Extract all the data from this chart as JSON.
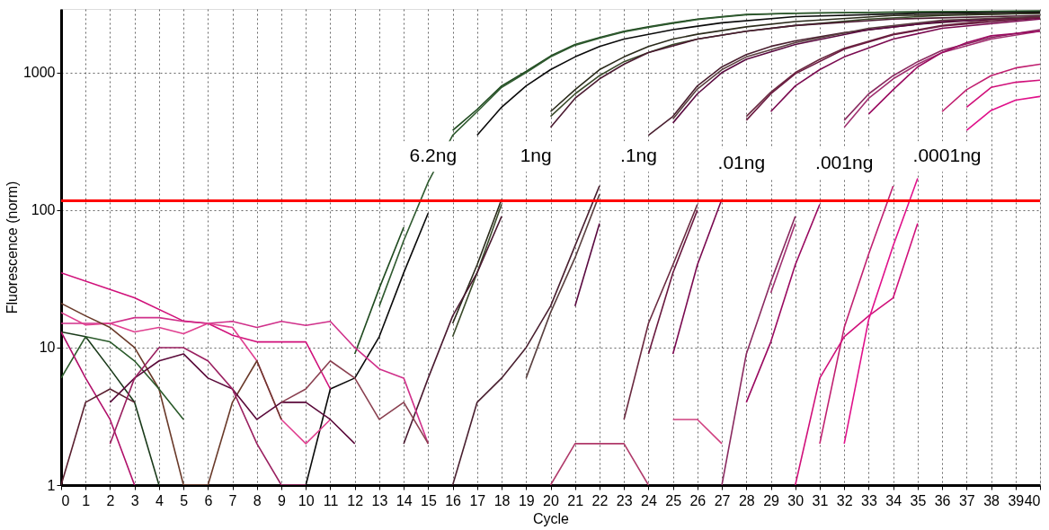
{
  "chart_data": {
    "type": "line",
    "xlabel": "Cycle",
    "ylabel": "Fluorescence (norm)",
    "xlim": [
      0,
      40
    ],
    "xticks": [
      0,
      1,
      2,
      3,
      4,
      5,
      6,
      7,
      8,
      9,
      10,
      11,
      12,
      13,
      14,
      15,
      16,
      17,
      18,
      19,
      20,
      21,
      22,
      23,
      24,
      25,
      26,
      27,
      28,
      29,
      30,
      31,
      32,
      33,
      34,
      35,
      36,
      37,
      38,
      39,
      40
    ],
    "ylim": [
      1,
      2900
    ],
    "yticks": [
      1,
      10,
      100,
      {
        "value": 1000,
        "label": "1000"
      }
    ],
    "log": "y",
    "grid": true,
    "legend": false,
    "marker": "none",
    "line_style": "solid",
    "ref_lines": [
      {
        "axis": "y",
        "value": 117,
        "color": "#ff0000"
      }
    ],
    "annotations": [
      "6.2ng",
      "1ng",
      ".1ng",
      ".01ng",
      ".001ng",
      ".0001ng"
    ],
    "series": [
      {
        "color": "#1f4a1f",
        "x": [
          12,
          13,
          14,
          15,
          16,
          17,
          18,
          19,
          20,
          21,
          22,
          23,
          24,
          25,
          26,
          27,
          28,
          30,
          34,
          40
        ],
        "values": [
          9,
          27,
          75,
          null,
          380,
          540,
          800,
          1020,
          1320,
          1600,
          1800,
          2000,
          2150,
          2300,
          2450,
          2550,
          2650,
          2700,
          2750,
          2800
        ]
      },
      {
        "color": "#2f5a2f",
        "x": [
          13,
          14,
          15,
          16,
          17,
          18,
          19,
          20,
          21,
          22,
          23,
          24,
          25,
          26,
          27,
          28,
          30,
          34,
          40
        ],
        "values": [
          20,
          60,
          160,
          350,
          520,
          780,
          1000,
          1300,
          1580,
          1780,
          1980,
          2130,
          2280,
          2430,
          2530,
          2630,
          2700,
          2750,
          2800
        ]
      },
      {
        "color": "#0a0a0a",
        "x": [
          10,
          11,
          12,
          13,
          14,
          15,
          16,
          17,
          18,
          19,
          20,
          21,
          22,
          23,
          25,
          27,
          30,
          35,
          40
        ],
        "values": [
          1,
          5,
          6,
          12,
          35,
          95,
          null,
          350,
          560,
          800,
          1050,
          1300,
          1550,
          1750,
          2050,
          2300,
          2550,
          2700,
          2750
        ]
      },
      {
        "color": "#3a4a2a",
        "x": [
          16,
          17,
          18,
          19,
          20,
          21,
          22,
          23,
          24,
          25,
          26,
          28,
          30,
          33,
          36,
          40
        ],
        "values": [
          12,
          35,
          110,
          null,
          480,
          700,
          950,
          1200,
          1400,
          1600,
          1750,
          2000,
          2200,
          2450,
          2600,
          2700
        ]
      },
      {
        "color": "#2a2a1a",
        "x": [
          16,
          17,
          18,
          19,
          20,
          21,
          22,
          23,
          24,
          25,
          26,
          28,
          30,
          34,
          40
        ],
        "values": [
          15,
          40,
          120,
          null,
          520,
          750,
          1050,
          1300,
          1550,
          1750,
          1900,
          2150,
          2350,
          2600,
          2700
        ]
      },
      {
        "color": "#4a1a30",
        "x": [
          14,
          15,
          16,
          17,
          18,
          19,
          20,
          21,
          22,
          23,
          24,
          26,
          28,
          30,
          34,
          40
        ],
        "values": [
          2,
          6,
          17,
          35,
          90,
          null,
          400,
          650,
          900,
          1150,
          1400,
          1750,
          2000,
          2200,
          2450,
          2600
        ]
      },
      {
        "color": "#4a2030",
        "x": [
          16,
          17,
          18,
          19,
          20,
          21,
          22,
          23,
          24,
          25,
          26,
          27,
          28,
          29,
          30,
          32,
          35,
          38,
          40
        ],
        "values": [
          1,
          4,
          6,
          10,
          20,
          55,
          150,
          null,
          350,
          480,
          800,
          1100,
          1350,
          1550,
          1700,
          1950,
          2250,
          2450,
          2550
        ]
      },
      {
        "color": "#5a4040",
        "x": [
          19,
          20,
          21,
          22,
          23,
          24,
          25,
          26,
          27,
          28,
          30,
          33,
          36,
          40
        ],
        "values": [
          6,
          18,
          45,
          130,
          null,
          null,
          460,
          760,
          1050,
          1300,
          1650,
          2100,
          2400,
          2550
        ]
      },
      {
        "color": "#5a0a40",
        "x": [
          21,
          22,
          23,
          24,
          25,
          26,
          27,
          28,
          30,
          33,
          36,
          40
        ],
        "values": [
          20,
          80,
          null,
          null,
          430,
          700,
          1000,
          1250,
          1600,
          2050,
          2350,
          2500
        ]
      },
      {
        "color": "#6a2a40",
        "x": [
          23,
          24,
          25,
          26,
          27,
          28,
          29,
          30,
          31,
          32,
          34,
          36,
          38,
          40
        ],
        "values": [
          3,
          15,
          40,
          110,
          null,
          480,
          720,
          1000,
          1250,
          1500,
          1900,
          2200,
          2400,
          2500
        ]
      },
      {
        "color": "#6a1a40",
        "x": [
          24,
          25,
          26,
          27,
          28,
          29,
          30,
          32,
          34,
          36,
          40
        ],
        "values": [
          9,
          35,
          100,
          null,
          450,
          700,
          980,
          1480,
          1880,
          2180,
          2500
        ]
      },
      {
        "color": "#7a0a50",
        "x": [
          25,
          26,
          27,
          28,
          29,
          30,
          31,
          32,
          34,
          36,
          40
        ],
        "values": [
          9,
          40,
          120,
          null,
          520,
          800,
          1050,
          1300,
          1750,
          2100,
          2450
        ]
      },
      {
        "color": "#8a2a60",
        "x": [
          27,
          28,
          29,
          30,
          31,
          32,
          33,
          34,
          35,
          36,
          38,
          40
        ],
        "values": [
          1,
          9,
          30,
          90,
          null,
          450,
          700,
          950,
          1200,
          1450,
          1800,
          2050
        ]
      },
      {
        "color": "#a03070",
        "x": [
          29,
          30,
          31,
          32,
          33,
          34,
          35,
          36,
          38,
          40
        ],
        "values": [
          25,
          80,
          null,
          400,
          650,
          900,
          1150,
          1400,
          1750,
          2000
        ]
      },
      {
        "color": "#9a0a60",
        "x": [
          28,
          29,
          30,
          31,
          32,
          33,
          34,
          35,
          36,
          37,
          38,
          40
        ],
        "values": [
          4,
          11,
          40,
          110,
          null,
          500,
          750,
          1100,
          1400,
          1650,
          1850,
          2000
        ]
      },
      {
        "color": "#c02070",
        "x": [
          31,
          32,
          33,
          34,
          35,
          36,
          37,
          38,
          39,
          40
        ],
        "values": [
          2,
          14,
          48,
          150,
          null,
          520,
          750,
          950,
          1080,
          1150
        ]
      },
      {
        "color": "#d0107a",
        "x": [
          30,
          31,
          32,
          33,
          34,
          35,
          36,
          37,
          38,
          39,
          40
        ],
        "values": [
          1,
          6,
          12,
          17,
          23,
          80,
          null,
          560,
          780,
          850,
          880
        ]
      },
      {
        "color": "#e0108a",
        "x": [
          32,
          33,
          34,
          35,
          36,
          37,
          38,
          39,
          40
        ],
        "values": [
          2,
          16,
          55,
          170,
          null,
          380,
          530,
          630,
          670
        ]
      },
      {
        "color": "#d0107a",
        "x": [
          0,
          3,
          5,
          6,
          7,
          8,
          9,
          10,
          11
        ],
        "values": [
          35,
          23,
          15.6,
          15,
          12.3,
          11,
          11,
          11,
          5
        ]
      },
      {
        "color": "#d0308a",
        "x": [
          0,
          1,
          2,
          3,
          4,
          5,
          6,
          7,
          8,
          9,
          10,
          11,
          12,
          13,
          14,
          15
        ],
        "values": [
          15,
          15,
          15,
          16.5,
          16.5,
          15.5,
          15,
          15.5,
          14,
          15.5,
          14.5,
          15.5,
          10,
          7,
          6,
          2
        ]
      },
      {
        "color": "#e04090",
        "x": [
          0,
          1,
          2,
          3,
          4,
          5,
          6,
          7,
          8,
          9,
          10,
          11
        ],
        "values": [
          18,
          14.6,
          15,
          13,
          14,
          12.6,
          15,
          14,
          8,
          3,
          2,
          3
        ]
      },
      {
        "color": "#6a3a2a",
        "x": [
          0,
          1,
          2,
          3,
          4,
          5,
          6,
          7,
          8,
          9
        ],
        "values": [
          21,
          17,
          14,
          10,
          5,
          1,
          1,
          4,
          8,
          3
        ]
      },
      {
        "color": "#1a3a1a",
        "x": [
          0,
          1,
          2,
          3,
          4
        ],
        "values": [
          13,
          12,
          7,
          4,
          1
        ]
      },
      {
        "color": "#2a5a2a",
        "x": [
          0,
          1,
          2,
          3,
          4,
          5
        ],
        "values": [
          6,
          12,
          11,
          8,
          5,
          3
        ]
      },
      {
        "color": "#5a0a3a",
        "x": [
          2,
          3,
          4,
          5,
          6,
          7,
          8,
          9,
          10,
          11,
          12
        ],
        "values": [
          4,
          6,
          8,
          9,
          6,
          5,
          3,
          4,
          4,
          3,
          2
        ]
      },
      {
        "color": "#b0106a",
        "x": [
          0,
          1,
          2,
          3
        ],
        "values": [
          13,
          6,
          3,
          1
        ]
      },
      {
        "color": "#5a2030",
        "x": [
          0,
          1,
          2,
          3
        ],
        "values": [
          1,
          4,
          5,
          4
        ]
      },
      {
        "color": "#9a2060",
        "x": [
          2,
          3,
          4,
          5,
          6,
          7,
          8,
          9,
          10
        ],
        "values": [
          2,
          6,
          10,
          10,
          8,
          5,
          2,
          1,
          1
        ]
      },
      {
        "color": "#8a4050",
        "x": [
          9,
          10,
          11,
          12,
          13,
          14,
          15
        ],
        "values": [
          4,
          5,
          8,
          6,
          3,
          4,
          2
        ]
      },
      {
        "color": "#b03a6a",
        "x": [
          20,
          21,
          22,
          23,
          24
        ],
        "values": [
          1,
          2,
          2,
          2,
          1
        ]
      },
      {
        "color": "#d04080",
        "x": [
          25,
          26,
          27
        ],
        "values": [
          3,
          3,
          2
        ]
      }
    ]
  }
}
